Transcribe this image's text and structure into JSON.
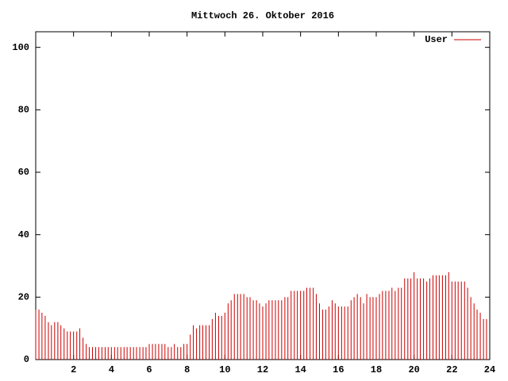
{
  "chart_data": {
    "type": "impulse",
    "title": "Mittwoch 26. Oktober 2016",
    "xlim": [
      0,
      24
    ],
    "xticks": [
      2,
      4,
      6,
      8,
      10,
      12,
      14,
      16,
      18,
      20,
      22,
      24
    ],
    "ylim": [
      0,
      105
    ],
    "yticks": [
      0,
      20,
      40,
      60,
      80,
      100
    ],
    "legend": "top-right",
    "x": [
      0,
      0.17,
      0.33,
      0.5,
      0.67,
      0.83,
      1,
      1.17,
      1.33,
      1.5,
      1.67,
      1.83,
      2,
      2.17,
      2.33,
      2.5,
      2.67,
      2.83,
      3,
      3.17,
      3.33,
      3.5,
      3.67,
      3.83,
      4,
      4.17,
      4.33,
      4.5,
      4.67,
      4.83,
      5,
      5.17,
      5.33,
      5.5,
      5.67,
      5.83,
      6,
      6.17,
      6.33,
      6.5,
      6.67,
      6.83,
      7,
      7.17,
      7.33,
      7.5,
      7.67,
      7.83,
      8,
      8.17,
      8.33,
      8.5,
      8.67,
      8.83,
      9,
      9.17,
      9.33,
      9.5,
      9.67,
      9.83,
      10,
      10.17,
      10.33,
      10.5,
      10.67,
      10.83,
      11,
      11.17,
      11.33,
      11.5,
      11.67,
      11.83,
      12,
      12.17,
      12.33,
      12.5,
      12.67,
      12.83,
      13,
      13.17,
      13.33,
      13.5,
      13.67,
      13.83,
      14,
      14.17,
      14.33,
      14.5,
      14.67,
      14.83,
      15,
      15.17,
      15.33,
      15.5,
      15.67,
      15.83,
      16,
      16.17,
      16.33,
      16.5,
      16.67,
      16.83,
      17,
      17.17,
      17.33,
      17.5,
      17.67,
      17.83,
      18,
      18.17,
      18.33,
      18.5,
      18.67,
      18.83,
      19,
      19.17,
      19.33,
      19.5,
      19.67,
      19.83,
      20,
      20.17,
      20.33,
      20.5,
      20.67,
      20.83,
      21,
      21.17,
      21.33,
      21.5,
      21.67,
      21.83,
      22,
      22.17,
      22.33,
      22.5,
      22.67,
      22.83,
      23,
      23.17,
      23.33,
      23.5,
      23.67,
      23.83
    ],
    "series": [
      {
        "name": "User",
        "color": "#cc0000",
        "values": [
          16,
          16,
          15,
          14,
          12,
          11,
          12,
          12,
          11,
          10,
          9,
          9,
          9,
          9,
          10,
          7,
          5,
          4,
          4,
          4,
          4,
          4,
          4,
          4,
          4,
          4,
          4,
          4,
          4,
          4,
          4,
          4,
          4,
          4,
          4,
          4,
          5,
          5,
          5,
          5,
          5,
          5,
          4,
          4,
          5,
          4,
          4,
          5,
          5,
          8,
          11,
          10,
          11,
          11,
          11,
          11,
          13,
          15,
          14,
          14,
          15,
          18,
          19,
          21,
          21,
          21,
          21,
          20,
          20,
          19,
          19,
          18,
          17,
          18,
          19,
          19,
          19,
          19,
          19,
          20,
          20,
          22,
          22,
          22,
          22,
          22,
          23,
          23,
          23,
          21,
          18,
          16,
          16,
          17,
          19,
          18,
          17,
          17,
          17,
          17,
          19,
          20,
          21,
          20,
          18,
          21,
          20,
          20,
          20,
          21,
          22,
          22,
          22,
          23,
          22,
          23,
          23,
          26,
          26,
          26,
          28,
          26,
          26,
          26,
          25,
          26,
          27,
          27,
          27,
          27,
          27,
          28,
          25,
          25,
          25,
          25,
          25,
          23,
          20,
          18,
          16,
          15,
          13,
          13
        ]
      }
    ]
  }
}
